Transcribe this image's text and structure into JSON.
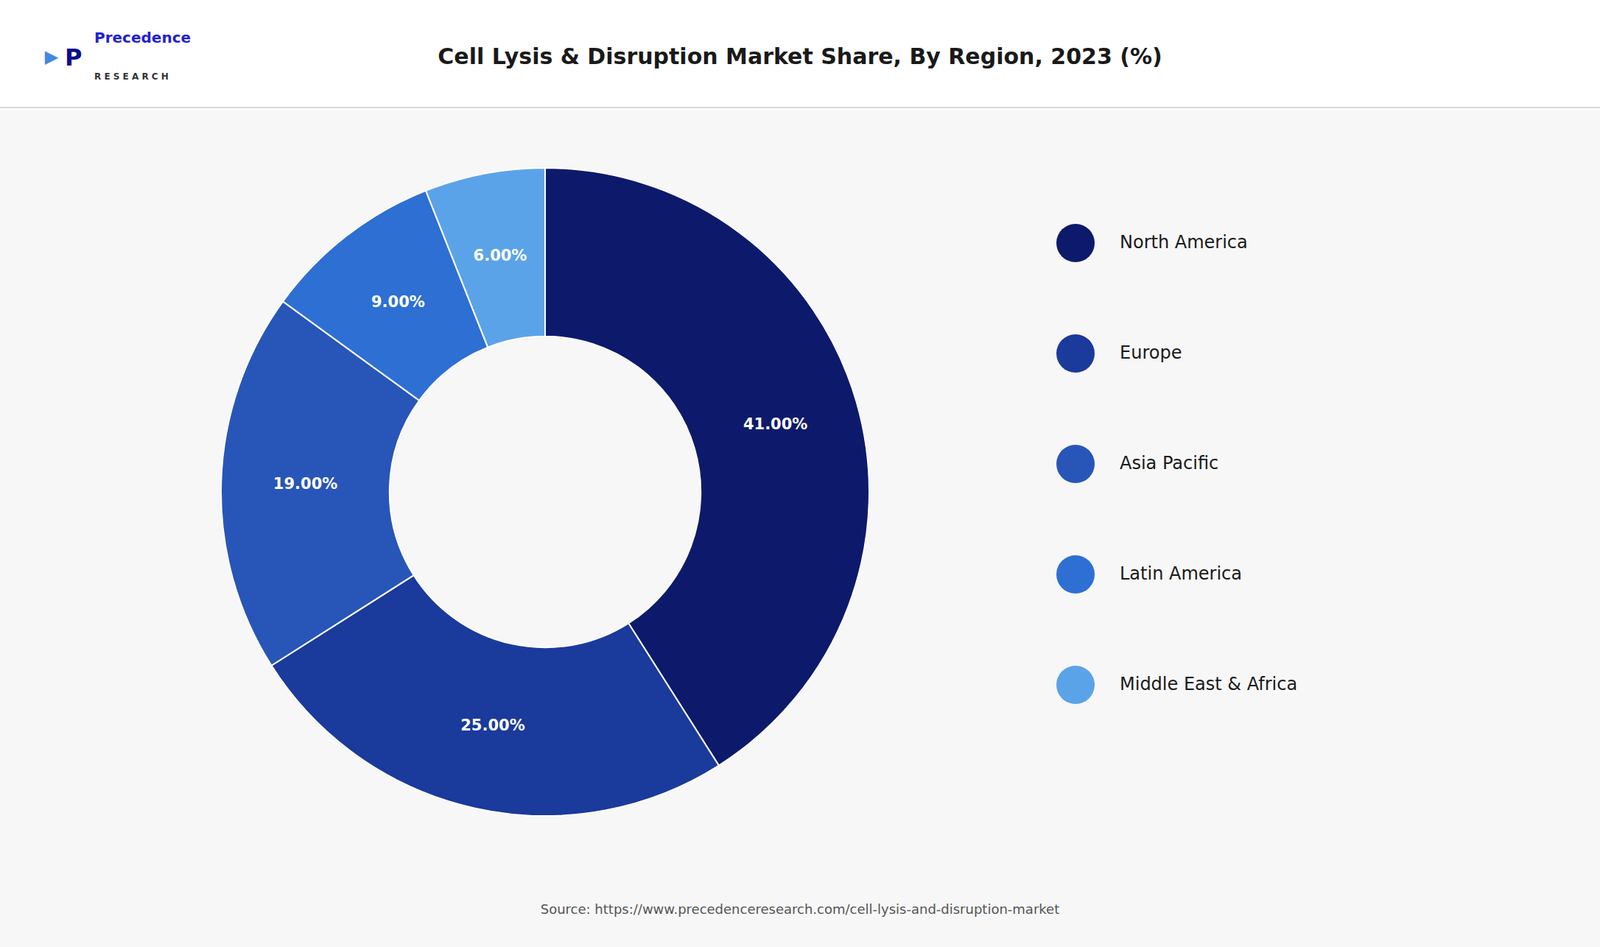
{
  "chart_data": {
    "type": "donut",
    "title": "Cell Lysis & Disruption Market Share, By Region, 2023 (%)",
    "categories": [
      "North America",
      "Europe",
      "Asia Pacific",
      "Latin America",
      "Middle East & Africa"
    ],
    "values": [
      41.0,
      25.0,
      19.0,
      9.0,
      6.0
    ],
    "value_labels": [
      "41.00%",
      "25.00%",
      "19.00%",
      "9.00%",
      "6.00%"
    ],
    "colors": [
      "#0d1a6b",
      "#1a3a9c",
      "#2855b8",
      "#2e6fd4",
      "#5ba3e8"
    ],
    "data_labels": true,
    "legend": "right",
    "annotations": [
      "▶",
      "P",
      "Precedence",
      "R E S E A R C H",
      "Source: https://www.precedenceresearch.com/cell-lysis-and-disruption-market"
    ]
  }
}
